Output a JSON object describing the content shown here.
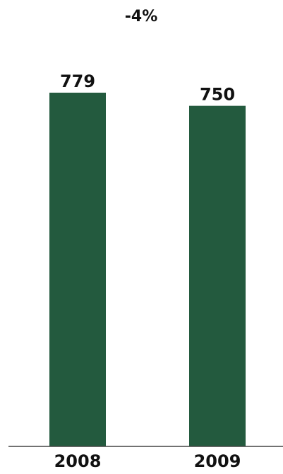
{
  "chart_data": {
    "type": "bar",
    "title": "-4%",
    "categories": [
      "2008",
      "2009"
    ],
    "values": [
      779,
      750
    ],
    "value_labels": [
      "779",
      "750"
    ],
    "bar_color": "#235a3e",
    "axis_color": "#444444",
    "xlabel": "",
    "ylabel": "",
    "ylim": [
      0,
      779
    ]
  }
}
